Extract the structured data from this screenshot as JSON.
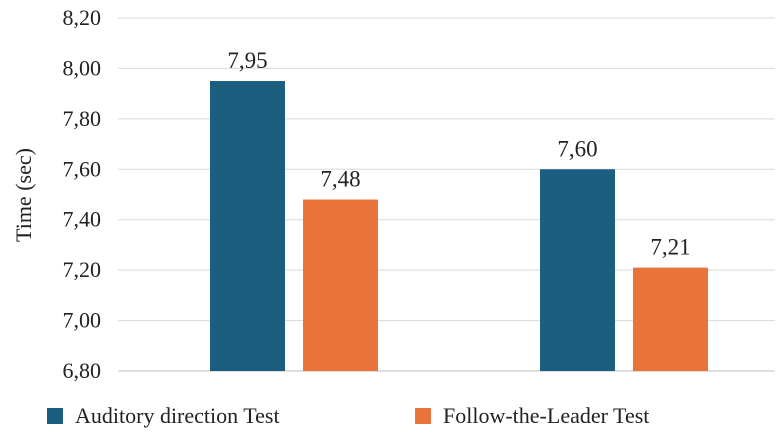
{
  "chart_data": {
    "type": "bar",
    "title": "",
    "xlabel": "",
    "ylabel": "Time (sec)",
    "ylim": [
      6.8,
      8.2
    ],
    "ytick_values": [
      6.8,
      7.0,
      7.2,
      7.4,
      7.6,
      7.8,
      8.0,
      8.2
    ],
    "ytick_labels": [
      "6,80",
      "7,00",
      "7,20",
      "7,40",
      "7,60",
      "7,80",
      "8,00",
      "8,20"
    ],
    "categories": [
      "",
      ""
    ],
    "grid": true,
    "legend_position": "bottom",
    "series": [
      {
        "name": "Auditory direction Test",
        "color": "#1b5e80",
        "values": [
          7.95,
          7.6
        ],
        "labels": [
          "7,95",
          "7,60"
        ]
      },
      {
        "name": "Follow-the-Leader Test",
        "color": "#e8743b",
        "values": [
          7.48,
          7.21
        ],
        "labels": [
          "7,48",
          "7,21"
        ]
      }
    ]
  }
}
